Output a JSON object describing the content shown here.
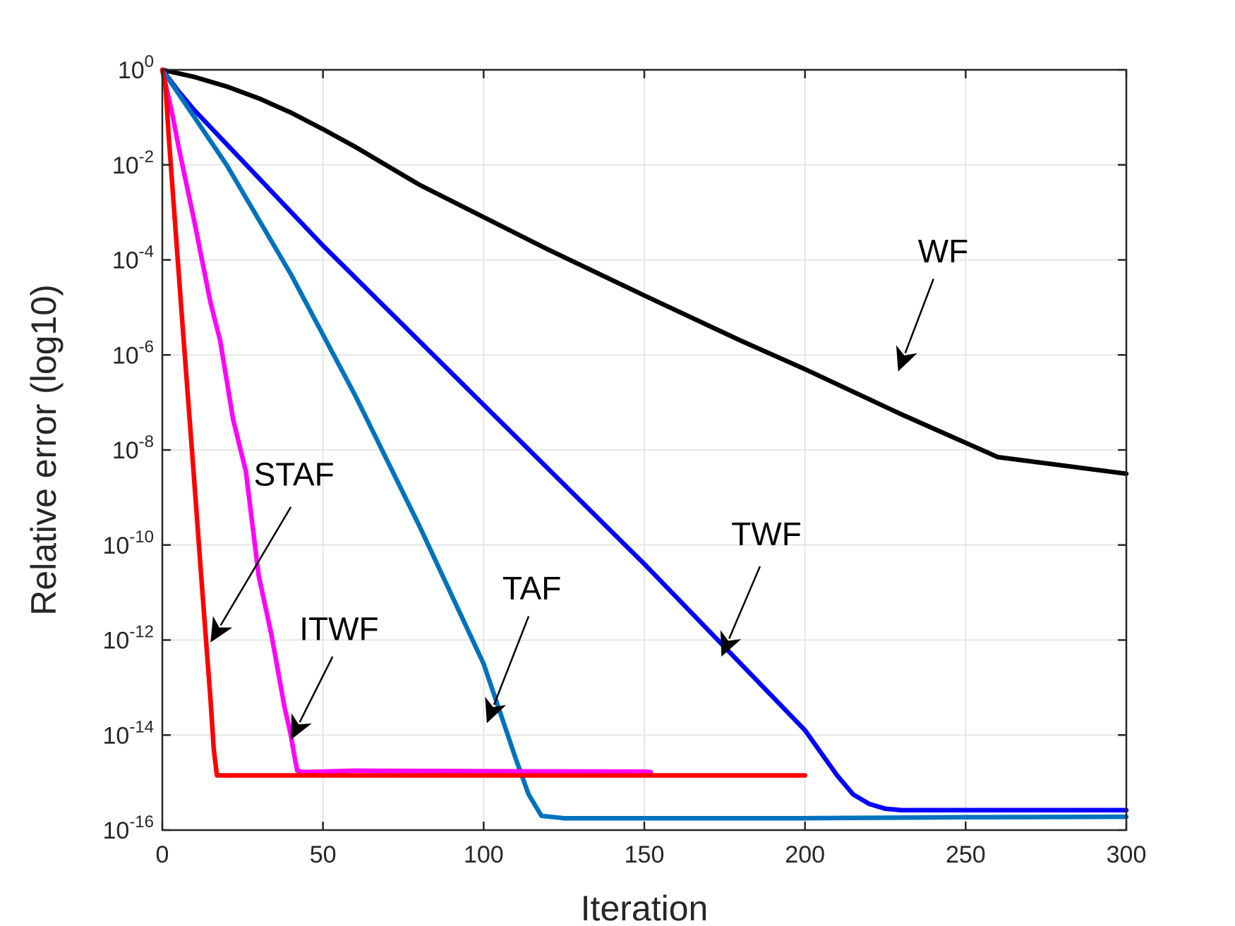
{
  "chart_data": {
    "type": "line",
    "xlabel": "Iteration",
    "ylabel": "Relative error (log10)",
    "xlim": [
      0,
      300
    ],
    "ylim_exponent": [
      -16,
      0
    ],
    "y_scale": "log10",
    "grid": true,
    "x_ticks": [
      "0",
      "50",
      "100",
      "150",
      "200",
      "250",
      "300"
    ],
    "y_ticks": [
      {
        "base": "10",
        "exp": "0",
        "value": 0
      },
      {
        "base": "10",
        "exp": "-2",
        "value": -2
      },
      {
        "base": "10",
        "exp": "-4",
        "value": -4
      },
      {
        "base": "10",
        "exp": "-6",
        "value": -6
      },
      {
        "base": "10",
        "exp": "-8",
        "value": -8
      },
      {
        "base": "10",
        "exp": "-10",
        "value": -10
      },
      {
        "base": "10",
        "exp": "-12",
        "value": -12
      },
      {
        "base": "10",
        "exp": "-14",
        "value": -14
      },
      {
        "base": "10",
        "exp": "-16",
        "value": -16
      }
    ],
    "series": [
      {
        "name": "WF",
        "color": "#000000",
        "x": [
          0,
          10,
          20,
          30,
          40,
          50,
          60,
          70,
          80,
          100,
          120,
          150,
          180,
          200,
          230,
          260,
          300
        ],
        "log_y": [
          0,
          -0.15,
          -0.35,
          -0.6,
          -0.9,
          -1.25,
          -1.62,
          -2.02,
          -2.42,
          -3.1,
          -3.78,
          -4.75,
          -5.7,
          -6.3,
          -7.25,
          -8.15,
          -8.5
        ]
      },
      {
        "name": "TWF",
        "color": "#0000ff",
        "x": [
          0,
          5,
          10,
          50,
          100,
          150,
          200,
          210,
          215,
          220,
          225,
          230,
          260,
          300
        ],
        "log_y": [
          0,
          -0.45,
          -0.85,
          -3.7,
          -7.05,
          -10.4,
          -13.9,
          -14.85,
          -15.25,
          -15.45,
          -15.55,
          -15.58,
          -15.58,
          -15.58
        ]
      },
      {
        "name": "TAF",
        "color": "#0072bd",
        "x": [
          0,
          5,
          20,
          40,
          60,
          80,
          100,
          106,
          110,
          114,
          118,
          125,
          150,
          200,
          250,
          300
        ],
        "log_y": [
          0,
          -0.5,
          -2.0,
          -4.3,
          -6.85,
          -9.6,
          -12.5,
          -13.7,
          -14.5,
          -15.25,
          -15.7,
          -15.75,
          -15.75,
          -15.75,
          -15.73,
          -15.72
        ]
      },
      {
        "name": "ITWF",
        "color": "#ff00ff",
        "x": [
          0,
          3,
          5,
          10,
          15,
          18,
          22,
          26,
          30,
          34,
          38,
          40,
          41,
          42,
          44,
          60,
          100,
          150,
          152
        ],
        "log_y": [
          0,
          -0.9,
          -1.6,
          -3.2,
          -4.9,
          -5.7,
          -7.35,
          -8.45,
          -10.65,
          -11.9,
          -13.4,
          -14.0,
          -14.4,
          -14.75,
          -14.78,
          -14.75,
          -14.76,
          -14.77,
          -14.78
        ]
      },
      {
        "name": "STAF",
        "color": "#ff0000",
        "x": [
          0,
          1,
          2,
          4,
          6,
          8,
          10,
          12,
          14,
          15,
          16,
          17,
          18,
          50,
          100,
          150,
          200
        ],
        "log_y": [
          0,
          -0.35,
          -1.4,
          -3.25,
          -5.1,
          -6.9,
          -8.7,
          -10.55,
          -12.35,
          -13.25,
          -14.3,
          -14.85,
          -14.85,
          -14.85,
          -14.85,
          -14.85,
          -14.85
        ]
      }
    ],
    "annotations": [
      {
        "text": "WF",
        "text_x": 243,
        "text_log_y": -4.05,
        "tail_x": 240,
        "tail_log_y": -4.4,
        "head_x": 229,
        "head_log_y": -6.35
      },
      {
        "text": "TWF",
        "text_x": 188,
        "text_log_y": -10.0,
        "tail_x": 186,
        "tail_log_y": -10.45,
        "head_x": 174,
        "head_log_y": -12.35
      },
      {
        "text": "TAF",
        "text_x": 115,
        "text_log_y": -11.15,
        "tail_x": 114,
        "tail_log_y": -11.5,
        "head_x": 101,
        "head_log_y": -13.75
      },
      {
        "text": "ITWF",
        "text_x": 55,
        "text_log_y": -12.0,
        "tail_x": 53,
        "tail_log_y": -12.35,
        "head_x": 40,
        "head_log_y": -14.1
      },
      {
        "text": "STAF",
        "text_x": 41,
        "text_log_y": -8.75,
        "tail_x": 40,
        "tail_log_y": -9.2,
        "head_x": 15,
        "head_log_y": -12.05
      }
    ]
  }
}
